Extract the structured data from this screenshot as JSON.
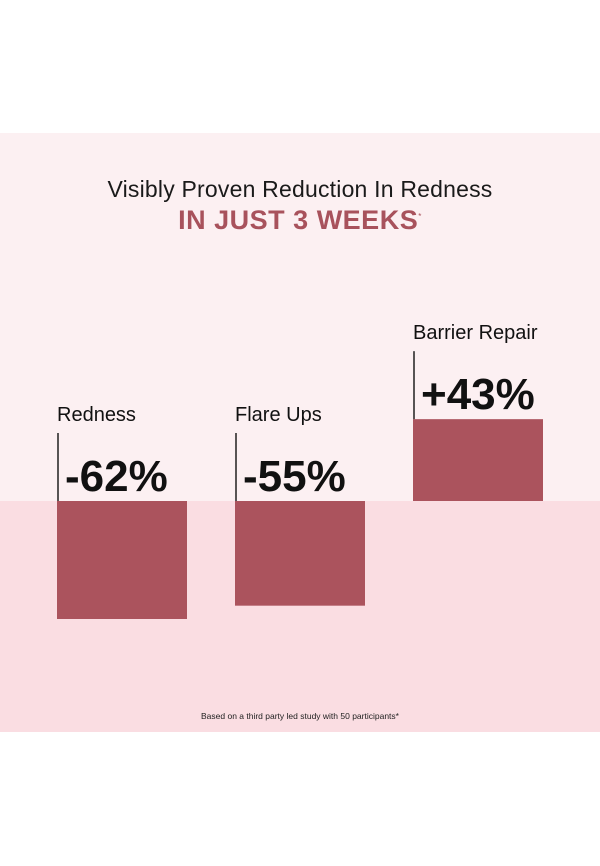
{
  "headline": "Visibly Proven Reduction In Redness",
  "subhead": "IN JUST 3 WEEKS",
  "subhead_mark": "*",
  "footnote": "Based on a third party led study with 50 participants*",
  "colors": {
    "bar": "#ab535d",
    "top_band": "#fcf0f2",
    "bottom_band": "#fadde2",
    "accent": "#a8525c",
    "text": "#111111"
  },
  "chart_data": {
    "type": "bar",
    "categories": [
      "Redness",
      "Flare Ups",
      "Barrier Repair"
    ],
    "values": [
      -62,
      -55,
      43
    ],
    "value_labels": [
      "-62%",
      "-55%",
      "+43%"
    ],
    "unit": "%",
    "ylim": [
      -70,
      70
    ],
    "grid": false,
    "legend": "none"
  }
}
